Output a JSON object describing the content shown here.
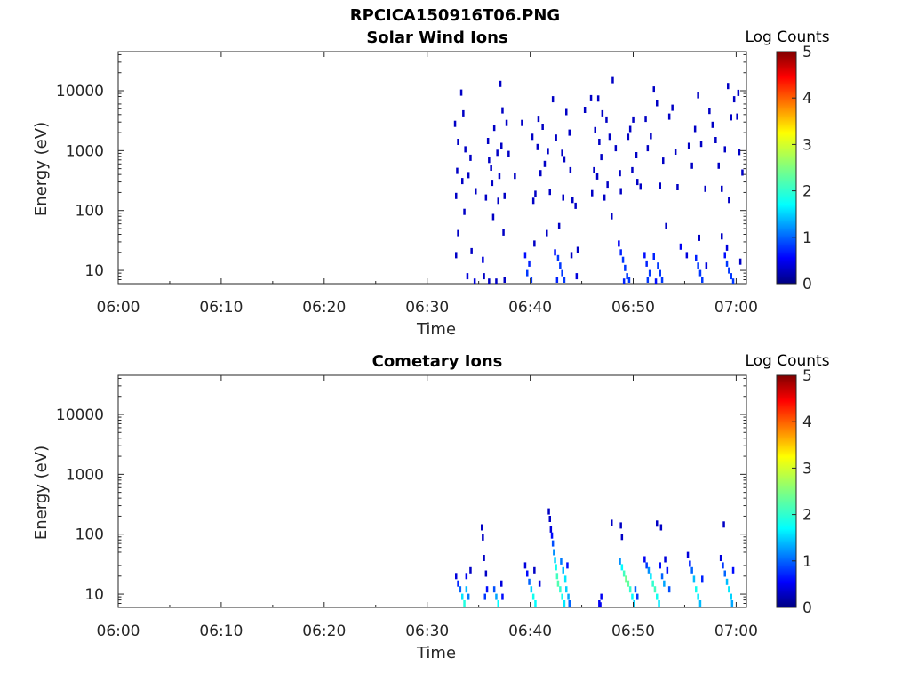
{
  "figure": {
    "title": "RPCICA150916T06.PNG"
  },
  "chart_data": [
    {
      "type": "heatmap",
      "title": "Solar Wind Ions",
      "xlabel": "Time",
      "ylabel": "Energy (eV)",
      "x_ticks": [
        "06:00",
        "06:10",
        "06:20",
        "06:30",
        "06:40",
        "06:50",
        "07:00"
      ],
      "x_range_minutes": [
        0,
        61
      ],
      "y_ticks": [
        "10",
        "100",
        "1000",
        "10000"
      ],
      "y_scale": "log",
      "y_range": [
        6,
        45000
      ],
      "colorbar": {
        "label": "Log Counts",
        "ticks": [
          "0",
          "1",
          "2",
          "3",
          "4",
          "5"
        ],
        "range": [
          0,
          5
        ],
        "colormap": "jet"
      },
      "cells": [
        [
          32.7,
          18,
          0.3
        ],
        [
          33.2,
          9300,
          0.3
        ],
        [
          32.6,
          2800,
          0.3
        ],
        [
          33.4,
          4200,
          0.3
        ],
        [
          32.9,
          1400,
          0.3
        ],
        [
          33.6,
          1050,
          0.3
        ],
        [
          34.1,
          760,
          0.3
        ],
        [
          32.8,
          460,
          0.3
        ],
        [
          33.3,
          310,
          0.3
        ],
        [
          32.7,
          175,
          0.3
        ],
        [
          33.9,
          390,
          0.3
        ],
        [
          34.6,
          210,
          0.3
        ],
        [
          33.5,
          95,
          0.3
        ],
        [
          32.9,
          42,
          0.3
        ],
        [
          34.2,
          21,
          0.3
        ],
        [
          33.8,
          8,
          0.4
        ],
        [
          34.5,
          6.5,
          0.4
        ],
        [
          35.3,
          15,
          0.4
        ],
        [
          35.8,
          1450,
          0.3
        ],
        [
          36.1,
          520,
          0.3
        ],
        [
          36.4,
          2400,
          0.3
        ],
        [
          36.7,
          920,
          0.3
        ],
        [
          37.0,
          13000,
          0.3
        ],
        [
          37.2,
          4700,
          0.3
        ],
        [
          36.9,
          380,
          0.3
        ],
        [
          37.4,
          175,
          0.3
        ],
        [
          37.6,
          2900,
          0.3
        ],
        [
          36.3,
          78,
          0.3
        ],
        [
          36.8,
          145,
          0.3
        ],
        [
          37.3,
          43,
          0.3
        ],
        [
          35.6,
          165,
          0.3
        ],
        [
          35.9,
          700,
          0.3
        ],
        [
          36.2,
          290,
          0.3
        ],
        [
          37.8,
          880,
          0.3
        ],
        [
          38.4,
          380,
          0.3
        ],
        [
          39.1,
          2900,
          0.3
        ],
        [
          37.1,
          1200,
          0.3
        ],
        [
          35.4,
          8,
          0.3
        ],
        [
          35.9,
          6.5,
          0.3
        ],
        [
          36.6,
          6.5,
          0.3
        ],
        [
          37.4,
          7,
          0.3
        ],
        [
          39.4,
          18,
          0.6
        ],
        [
          39.8,
          13,
          0.7
        ],
        [
          39.6,
          9,
          0.8
        ],
        [
          40.0,
          7,
          0.8
        ],
        [
          40.3,
          28,
          0.3
        ],
        [
          40.1,
          1700,
          0.3
        ],
        [
          40.6,
          1150,
          0.3
        ],
        [
          40.9,
          420,
          0.3
        ],
        [
          41.1,
          2500,
          0.3
        ],
        [
          40.4,
          190,
          0.3
        ],
        [
          41.3,
          600,
          0.3
        ],
        [
          41.6,
          980,
          0.3
        ],
        [
          40.7,
          3400,
          0.3
        ],
        [
          41.8,
          205,
          0.3
        ],
        [
          40.2,
          145,
          0.3
        ],
        [
          41.5,
          42,
          0.3
        ],
        [
          42.1,
          7200,
          0.3
        ],
        [
          42.4,
          1650,
          0.3
        ],
        [
          42.3,
          20,
          0.6
        ],
        [
          42.6,
          16,
          0.8
        ],
        [
          42.8,
          12,
          0.8
        ],
        [
          43.0,
          9,
          0.8
        ],
        [
          43.2,
          7,
          0.8
        ],
        [
          42.5,
          7,
          0.7
        ],
        [
          43.1,
          165,
          0.3
        ],
        [
          43.4,
          4400,
          0.3
        ],
        [
          43.7,
          2000,
          0.3
        ],
        [
          43.0,
          920,
          0.3
        ],
        [
          43.8,
          470,
          0.3
        ],
        [
          43.2,
          720,
          0.3
        ],
        [
          44.0,
          150,
          0.3
        ],
        [
          44.3,
          120,
          0.3
        ],
        [
          42.7,
          55,
          0.3
        ],
        [
          43.9,
          18,
          0.3
        ],
        [
          44.4,
          8,
          0.4
        ],
        [
          44.5,
          22,
          0.3
        ],
        [
          45.2,
          4800,
          0.3
        ],
        [
          45.8,
          7500,
          0.3
        ],
        [
          46.2,
          2200,
          0.3
        ],
        [
          46.6,
          1400,
          0.3
        ],
        [
          46.9,
          4200,
          0.3
        ],
        [
          47.3,
          3300,
          0.3
        ],
        [
          46.1,
          470,
          0.3
        ],
        [
          46.8,
          780,
          0.3
        ],
        [
          47.6,
          1700,
          0.3
        ],
        [
          47.9,
          15000,
          0.3
        ],
        [
          46.4,
          370,
          0.3
        ],
        [
          47.1,
          165,
          0.3
        ],
        [
          45.9,
          195,
          0.3
        ],
        [
          47.8,
          80,
          0.3
        ],
        [
          46.5,
          7400,
          0.3
        ],
        [
          47.4,
          270,
          0.3
        ],
        [
          48.6,
          420,
          0.3
        ],
        [
          48.2,
          1100,
          0.3
        ],
        [
          48.5,
          28,
          0.5
        ],
        [
          48.7,
          20,
          0.7
        ],
        [
          48.9,
          15,
          0.8
        ],
        [
          49.1,
          11,
          0.8
        ],
        [
          49.3,
          8,
          0.8
        ],
        [
          49.5,
          7,
          0.8
        ],
        [
          49.0,
          6.5,
          0.7
        ],
        [
          48.7,
          210,
          0.3
        ],
        [
          49.4,
          1700,
          0.3
        ],
        [
          49.8,
          470,
          0.3
        ],
        [
          49.6,
          2300,
          0.3
        ],
        [
          50.2,
          840,
          0.3
        ],
        [
          49.9,
          3300,
          0.3
        ],
        [
          50.6,
          250,
          0.3
        ],
        [
          50.3,
          300,
          0.3
        ],
        [
          51.0,
          18,
          0.6
        ],
        [
          51.2,
          13,
          0.7
        ],
        [
          51.5,
          9,
          0.8
        ],
        [
          51.3,
          7,
          0.8
        ],
        [
          51.9,
          17,
          0.7
        ],
        [
          52.3,
          12,
          0.8
        ],
        [
          52.5,
          9,
          0.8
        ],
        [
          52.7,
          7,
          0.8
        ],
        [
          52.1,
          6.5,
          0.6
        ],
        [
          51.1,
          3400,
          0.3
        ],
        [
          51.3,
          1100,
          0.3
        ],
        [
          51.6,
          1750,
          0.3
        ],
        [
          51.9,
          10500,
          0.3
        ],
        [
          52.2,
          6200,
          0.3
        ],
        [
          52.5,
          260,
          0.3
        ],
        [
          52.8,
          680,
          0.3
        ],
        [
          53.1,
          55,
          0.3
        ],
        [
          53.4,
          3700,
          0.3
        ],
        [
          53.7,
          5200,
          0.3
        ],
        [
          54.0,
          960,
          0.3
        ],
        [
          54.2,
          245,
          0.3
        ],
        [
          54.5,
          25,
          0.5
        ],
        [
          55.1,
          18,
          0.4
        ],
        [
          55.3,
          1200,
          0.3
        ],
        [
          55.6,
          560,
          0.3
        ],
        [
          55.9,
          2300,
          0.3
        ],
        [
          56.2,
          8400,
          0.3
        ],
        [
          56.5,
          1300,
          0.3
        ],
        [
          56.9,
          230,
          0.3
        ],
        [
          56.3,
          35,
          0.3
        ],
        [
          56.0,
          16,
          0.7
        ],
        [
          56.2,
          12,
          0.8
        ],
        [
          56.4,
          9,
          0.8
        ],
        [
          56.6,
          7,
          0.8
        ],
        [
          57.0,
          12,
          0.4
        ],
        [
          57.3,
          4600,
          0.3
        ],
        [
          57.6,
          2700,
          0.3
        ],
        [
          57.9,
          1500,
          0.3
        ],
        [
          58.2,
          560,
          0.3
        ],
        [
          58.5,
          230,
          0.3
        ],
        [
          58.8,
          1050,
          0.3
        ],
        [
          59.1,
          12000,
          0.3
        ],
        [
          59.4,
          3600,
          0.3
        ],
        [
          59.7,
          7200,
          0.3
        ],
        [
          59.2,
          150,
          0.3
        ],
        [
          58.5,
          37,
          0.3
        ],
        [
          59.0,
          24,
          0.4
        ],
        [
          58.8,
          18,
          0.6
        ],
        [
          59.0,
          13,
          0.8
        ],
        [
          59.2,
          10,
          0.8
        ],
        [
          59.4,
          8,
          0.8
        ],
        [
          59.6,
          6.5,
          0.8
        ],
        [
          60.0,
          3700,
          0.3
        ],
        [
          60.2,
          950,
          0.3
        ],
        [
          60.5,
          430,
          0.3
        ],
        [
          60.3,
          14,
          0.3
        ],
        [
          60.1,
          9200,
          0.3
        ]
      ]
    },
    {
      "type": "heatmap",
      "title": "Cometary Ions",
      "xlabel": "Time",
      "ylabel": "Energy (eV)",
      "x_ticks": [
        "06:00",
        "06:10",
        "06:20",
        "06:30",
        "06:40",
        "06:50",
        "07:00"
      ],
      "x_range_minutes": [
        0,
        61
      ],
      "y_ticks": [
        "10",
        "100",
        "1000",
        "10000"
      ],
      "y_scale": "log",
      "y_range": [
        6,
        45000
      ],
      "colorbar": {
        "label": "Log Counts",
        "ticks": [
          "0",
          "1",
          "2",
          "3",
          "4",
          "5"
        ],
        "range": [
          0,
          5
        ],
        "colormap": "jet"
      },
      "cells": [
        [
          32.7,
          20,
          0.4
        ],
        [
          32.9,
          15,
          0.7
        ],
        [
          33.1,
          12,
          1.0
        ],
        [
          33.3,
          9,
          1.6
        ],
        [
          33.5,
          7,
          1.9
        ],
        [
          33.7,
          12,
          1.4
        ],
        [
          33.9,
          9,
          1.1
        ],
        [
          33.7,
          20,
          0.5
        ],
        [
          34.1,
          25,
          0.3
        ],
        [
          35.2,
          130,
          0.3
        ],
        [
          35.3,
          88,
          0.3
        ],
        [
          35.4,
          40,
          0.3
        ],
        [
          35.6,
          22,
          0.3
        ],
        [
          35.7,
          12,
          0.6
        ],
        [
          35.5,
          9,
          0.8
        ],
        [
          36.4,
          12,
          0.9
        ],
        [
          36.6,
          9,
          1.3
        ],
        [
          36.8,
          7,
          1.7
        ],
        [
          37.1,
          15,
          0.4
        ],
        [
          37.2,
          9,
          0.6
        ],
        [
          39.4,
          30,
          0.4
        ],
        [
          39.6,
          22,
          0.6
        ],
        [
          39.8,
          16,
          1.0
        ],
        [
          40.0,
          12,
          1.5
        ],
        [
          40.2,
          9,
          1.8
        ],
        [
          40.4,
          7,
          1.7
        ],
        [
          40.3,
          25,
          0.3
        ],
        [
          40.8,
          15,
          0.4
        ],
        [
          41.7,
          240,
          0.3
        ],
        [
          41.8,
          180,
          0.3
        ],
        [
          41.9,
          120,
          0.4
        ],
        [
          42.0,
          95,
          0.6
        ],
        [
          42.1,
          70,
          0.9
        ],
        [
          42.2,
          50,
          1.2
        ],
        [
          42.3,
          37,
          1.5
        ],
        [
          42.4,
          28,
          1.8
        ],
        [
          42.5,
          20,
          2.1
        ],
        [
          42.6,
          15,
          2.2
        ],
        [
          42.8,
          12,
          2.0
        ],
        [
          43.0,
          9,
          1.8
        ],
        [
          43.2,
          7,
          1.6
        ],
        [
          42.9,
          35,
          1.1
        ],
        [
          43.1,
          25,
          1.4
        ],
        [
          43.3,
          18,
          1.6
        ],
        [
          43.4,
          12,
          1.5
        ],
        [
          43.6,
          9,
          1.3
        ],
        [
          43.7,
          7,
          1.0
        ],
        [
          43.5,
          30,
          0.6
        ],
        [
          46.6,
          7,
          0.5
        ],
        [
          46.8,
          9,
          0.5
        ],
        [
          46.7,
          6.5,
          0.5
        ],
        [
          47.8,
          155,
          0.3
        ],
        [
          48.7,
          140,
          0.3
        ],
        [
          48.8,
          90,
          0.3
        ],
        [
          48.6,
          35,
          1.2
        ],
        [
          48.8,
          28,
          1.7
        ],
        [
          49.0,
          22,
          2.1
        ],
        [
          49.2,
          18,
          2.4
        ],
        [
          49.4,
          15,
          2.3
        ],
        [
          49.6,
          12,
          2.0
        ],
        [
          49.8,
          9,
          1.7
        ],
        [
          50.0,
          7,
          1.5
        ],
        [
          50.1,
          12,
          1.0
        ],
        [
          50.3,
          9,
          0.8
        ],
        [
          51.0,
          38,
          0.5
        ],
        [
          51.2,
          30,
          0.8
        ],
        [
          51.4,
          25,
          1.2
        ],
        [
          51.6,
          20,
          1.6
        ],
        [
          51.8,
          15,
          2.0
        ],
        [
          52.0,
          12,
          2.1
        ],
        [
          52.2,
          9,
          1.8
        ],
        [
          52.4,
          7,
          1.6
        ],
        [
          52.5,
          30,
          0.6
        ],
        [
          52.7,
          20,
          1.0
        ],
        [
          52.9,
          15,
          1.3
        ],
        [
          53.0,
          38,
          0.4
        ],
        [
          53.2,
          25,
          0.6
        ],
        [
          53.4,
          12,
          0.9
        ],
        [
          52.2,
          150,
          0.3
        ],
        [
          52.6,
          130,
          0.3
        ],
        [
          55.2,
          45,
          0.4
        ],
        [
          55.4,
          32,
          0.7
        ],
        [
          55.6,
          25,
          1.0
        ],
        [
          55.8,
          18,
          1.4
        ],
        [
          56.0,
          12,
          1.8
        ],
        [
          56.2,
          9,
          1.6
        ],
        [
          56.4,
          7,
          1.4
        ],
        [
          56.6,
          18,
          0.7
        ],
        [
          58.4,
          40,
          0.4
        ],
        [
          58.6,
          30,
          0.8
        ],
        [
          58.7,
          145,
          0.3
        ],
        [
          58.8,
          22,
          1.0
        ],
        [
          59.0,
          16,
          1.4
        ],
        [
          59.2,
          12,
          1.6
        ],
        [
          59.4,
          9,
          1.5
        ],
        [
          59.5,
          7,
          1.3
        ],
        [
          59.6,
          25,
          0.6
        ]
      ]
    }
  ]
}
